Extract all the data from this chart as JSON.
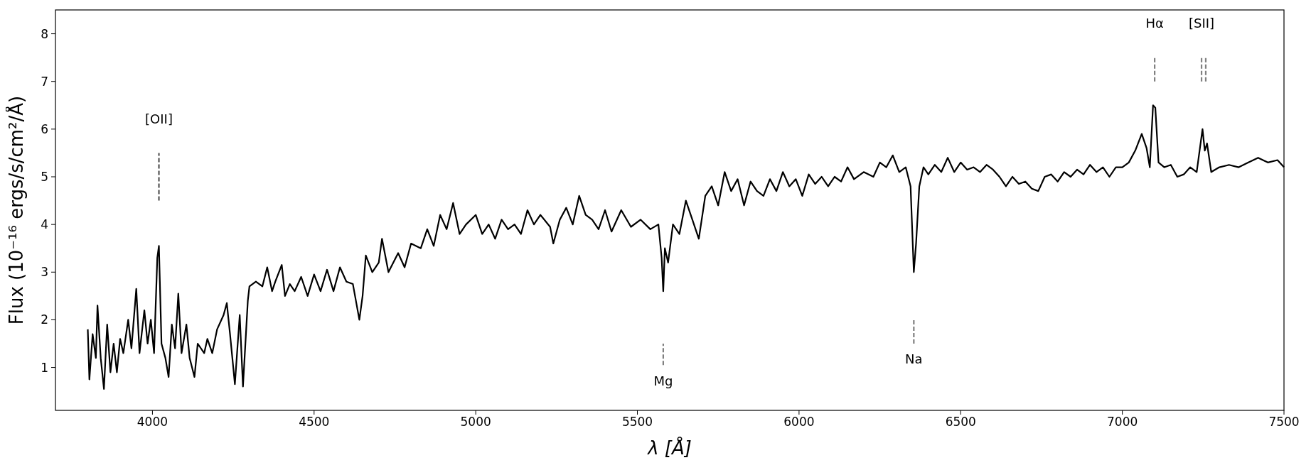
{
  "chart_data": {
    "type": "line",
    "xlabel": "λ [Å]",
    "ylabel": "Flux (10⁻¹⁶ ergs/s/cm²/Å)",
    "xlim": [
      3700,
      7500
    ],
    "ylim": [
      0.1,
      8.5
    ],
    "xticks": [
      4000,
      4500,
      5000,
      5500,
      6000,
      6500,
      7000,
      7500
    ],
    "yticks": [
      1,
      2,
      3,
      4,
      5,
      6,
      7,
      8
    ],
    "series": [
      {
        "color": "#000000",
        "line_style": "solid",
        "x": [
          3800,
          3805,
          3815,
          3825,
          3830,
          3840,
          3850,
          3860,
          3870,
          3880,
          3890,
          3900,
          3910,
          3925,
          3935,
          3950,
          3960,
          3975,
          3985,
          3995,
          4005,
          4015,
          4020,
          4028,
          4040,
          4050,
          4060,
          4070,
          4080,
          4090,
          4105,
          4115,
          4130,
          4140,
          4160,
          4170,
          4185,
          4200,
          4220,
          4230,
          4240,
          4255,
          4270,
          4280,
          4295,
          4300,
          4320,
          4340,
          4355,
          4370,
          4380,
          4400,
          4410,
          4425,
          4440,
          4460,
          4480,
          4500,
          4520,
          4540,
          4560,
          4580,
          4600,
          4620,
          4640,
          4650,
          4660,
          4680,
          4700,
          4710,
          4730,
          4760,
          4780,
          4800,
          4830,
          4850,
          4870,
          4890,
          4910,
          4930,
          4950,
          4970,
          5000,
          5020,
          5040,
          5060,
          5080,
          5100,
          5120,
          5140,
          5160,
          5180,
          5200,
          5230,
          5240,
          5260,
          5280,
          5300,
          5320,
          5340,
          5360,
          5380,
          5400,
          5420,
          5450,
          5480,
          5510,
          5540,
          5565,
          5575,
          5580,
          5585,
          5595,
          5610,
          5630,
          5650,
          5670,
          5690,
          5710,
          5730,
          5750,
          5770,
          5790,
          5810,
          5830,
          5850,
          5870,
          5890,
          5910,
          5930,
          5950,
          5970,
          5990,
          6010,
          6030,
          6050,
          6070,
          6090,
          6110,
          6130,
          6150,
          6170,
          6200,
          6230,
          6250,
          6270,
          6290,
          6310,
          6330,
          6345,
          6355,
          6362,
          6372,
          6385,
          6400,
          6420,
          6440,
          6460,
          6480,
          6500,
          6520,
          6540,
          6560,
          6580,
          6600,
          6620,
          6640,
          6660,
          6680,
          6700,
          6720,
          6740,
          6760,
          6780,
          6800,
          6820,
          6840,
          6860,
          6880,
          6900,
          6920,
          6940,
          6960,
          6980,
          7000,
          7020,
          7040,
          7060,
          7075,
          7085,
          7095,
          7102,
          7112,
          7130,
          7150,
          7170,
          7190,
          7210,
          7230,
          7240,
          7248,
          7255,
          7262,
          7275,
          7300,
          7330,
          7360,
          7390,
          7420,
          7450,
          7480,
          7500
        ],
        "values": [
          1.8,
          0.75,
          1.7,
          1.2,
          2.3,
          1.2,
          0.55,
          1.9,
          0.9,
          1.5,
          0.9,
          1.6,
          1.3,
          2.0,
          1.4,
          2.65,
          1.3,
          2.2,
          1.5,
          2.0,
          1.3,
          3.3,
          3.55,
          1.5,
          1.2,
          0.8,
          1.9,
          1.4,
          2.55,
          1.3,
          1.9,
          1.2,
          0.8,
          1.5,
          1.3,
          1.6,
          1.3,
          1.8,
          2.1,
          2.35,
          1.7,
          0.65,
          2.1,
          0.6,
          2.4,
          2.7,
          2.8,
          2.7,
          3.1,
          2.6,
          2.8,
          3.15,
          2.5,
          2.75,
          2.6,
          2.9,
          2.5,
          2.95,
          2.6,
          3.05,
          2.6,
          3.1,
          2.8,
          2.75,
          2.0,
          2.5,
          3.35,
          3.0,
          3.2,
          3.7,
          3.0,
          3.4,
          3.1,
          3.6,
          3.5,
          3.9,
          3.55,
          4.2,
          3.9,
          4.45,
          3.8,
          4.0,
          4.2,
          3.8,
          4.0,
          3.7,
          4.1,
          3.9,
          4.0,
          3.8,
          4.3,
          4.0,
          4.2,
          3.95,
          3.6,
          4.1,
          4.35,
          4.0,
          4.6,
          4.2,
          4.1,
          3.9,
          4.3,
          3.85,
          4.3,
          3.95,
          4.1,
          3.9,
          4.0,
          3.3,
          2.6,
          3.5,
          3.2,
          4.0,
          3.8,
          4.5,
          4.1,
          3.7,
          4.6,
          4.8,
          4.4,
          5.1,
          4.7,
          4.95,
          4.4,
          4.9,
          4.7,
          4.6,
          4.95,
          4.7,
          5.1,
          4.8,
          4.95,
          4.6,
          5.05,
          4.85,
          5.0,
          4.8,
          5.0,
          4.9,
          5.2,
          4.95,
          5.1,
          5.0,
          5.3,
          5.2,
          5.45,
          5.1,
          5.2,
          4.8,
          3.0,
          3.6,
          4.8,
          5.2,
          5.05,
          5.25,
          5.1,
          5.4,
          5.1,
          5.3,
          5.15,
          5.2,
          5.1,
          5.25,
          5.15,
          5.0,
          4.8,
          5.0,
          4.85,
          4.9,
          4.75,
          4.7,
          5.0,
          5.05,
          4.9,
          5.1,
          5.0,
          5.15,
          5.05,
          5.25,
          5.1,
          5.2,
          5.0,
          5.2,
          5.2,
          5.3,
          5.55,
          5.9,
          5.6,
          5.2,
          6.5,
          6.45,
          5.3,
          5.2,
          5.25,
          5.0,
          5.05,
          5.2,
          5.1,
          5.6,
          6.0,
          5.55,
          5.7,
          5.1,
          5.2,
          5.25,
          5.2,
          5.3,
          5.4,
          5.3,
          5.35,
          5.2
        ]
      },
      {
        "color": "#555555",
        "line_style": "dashed",
        "x": [
          4020,
          4020
        ],
        "values": [
          4.5,
          5.5
        ]
      },
      {
        "color": "#808080",
        "line_style": "dashed",
        "x": [
          5580,
          5580
        ],
        "values": [
          1.05,
          1.5
        ]
      },
      {
        "color": "#808080",
        "line_style": "dashed",
        "x": [
          6355,
          6355
        ],
        "values": [
          1.5,
          2.0
        ]
      },
      {
        "color": "#808080",
        "line_style": "dashed",
        "x": [
          7100,
          7100
        ],
        "values": [
          7.0,
          7.5
        ]
      },
      {
        "color": "#808080",
        "line_style": "dashed",
        "x": [
          7245,
          7245
        ],
        "values": [
          7.0,
          7.5
        ]
      },
      {
        "color": "#808080",
        "line_style": "dashed",
        "x": [
          7258,
          7258
        ],
        "values": [
          7.0,
          7.5
        ]
      }
    ],
    "annotations": [
      {
        "text": "[OII]",
        "x": 4020,
        "y": 5.5
      },
      {
        "text": "Mg",
        "x": 5580,
        "y": 1.05
      },
      {
        "text": "Na",
        "x": 6355,
        "y": 1.5
      },
      {
        "text": "Hα",
        "x": 7100,
        "y": 7.5
      },
      {
        "text": "[SII]",
        "x": 7245,
        "y": 7.5
      }
    ]
  }
}
